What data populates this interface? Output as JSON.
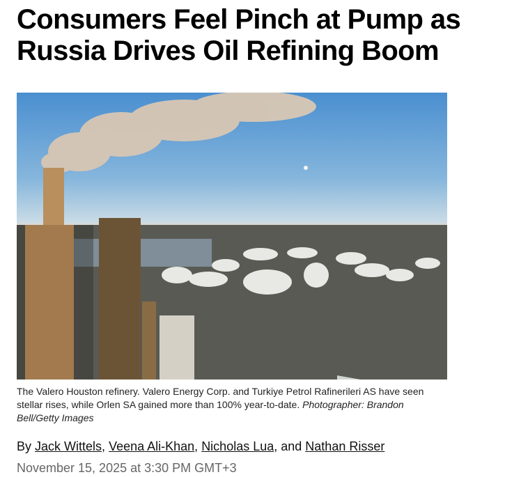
{
  "article": {
    "headline": "Consumers Feel Pinch at Pump as Russia Drives Oil Refining Boom",
    "photo_alt": "Aerial view of a refinery with smokestack and white storage tanks",
    "caption": "The Valero Houston refinery. Valero Energy Corp. and Turkiye Petrol Rafinerileri AS have seen stellar rises, while Orlen SA gained more than 100% year-to-date.",
    "credit": "Photographer: Brandon Bell/Getty Images",
    "byline_prefix": "By",
    "authors": [
      "Jack Wittels",
      "Veena Ali-Khan",
      "Nicholas Lua",
      "Nathan Risser"
    ],
    "sep1": ", ",
    "sep2": ", ",
    "sep3": ", and ",
    "date": "November 15, 2025 at 3:30 PM GMT+3"
  }
}
